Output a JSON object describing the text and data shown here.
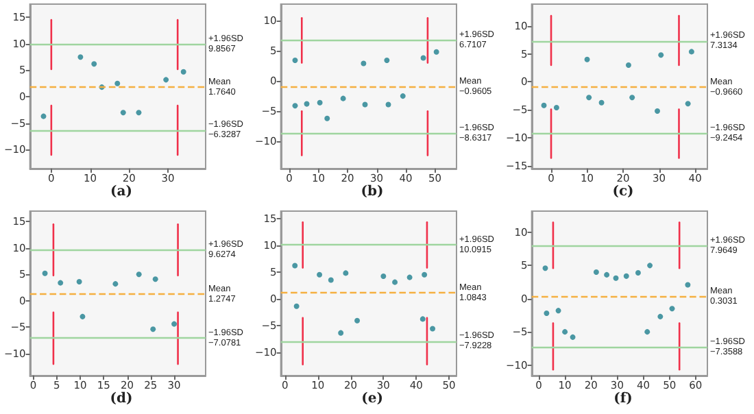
{
  "chart_data": [
    {
      "type": "scatter",
      "title": "(a)",
      "xlim": [
        -5.5,
        39.7
      ],
      "xticks": [
        0,
        10,
        20,
        30
      ],
      "ylim": [
        -13.6,
        17.5
      ],
      "yticks": [
        -10,
        -5,
        0,
        5,
        10,
        15
      ],
      "series": [
        {
          "color": "#1f7f8f",
          "marker": "circle",
          "x": [
            -2,
            7.5,
            11,
            13,
            17,
            18.5,
            22.5,
            29.5,
            34
          ],
          "values": [
            -3.7,
            7.5,
            6.2,
            1.8,
            2.5,
            -3,
            -3,
            3.2,
            4.7
          ]
        },
        {
          "type": "line",
          "color": "#f0304a",
          "x": [
            0,
            0
          ],
          "values": [
            5.2,
            14.5
          ]
        },
        {
          "type": "line",
          "color": "#f0304a",
          "x": [
            32.5,
            32.5
          ],
          "values": [
            5.2,
            14.5
          ]
        },
        {
          "type": "line",
          "color": "#f0304a",
          "x": [
            0,
            0
          ],
          "values": [
            -11,
            -1.7
          ]
        },
        {
          "type": "line",
          "color": "#f0304a",
          "x": [
            32.5,
            32.5
          ],
          "values": [
            -11,
            -1.7
          ]
        }
      ],
      "ref_lines": [
        {
          "axis": "y",
          "value": 9.8567,
          "label": "+1.96SD\n9.8567",
          "color": "#9fd59f",
          "line_style": "solid"
        },
        {
          "axis": "y",
          "value": 1.764,
          "label": "Mean\n1.7640",
          "color": "#f5b041",
          "line_style": "dashed"
        },
        {
          "axis": "y",
          "value": -6.3287,
          "label": "−1.96SD\n−6.3287",
          "color": "#9fd59f",
          "line_style": "solid"
        }
      ]
    },
    {
      "type": "scatter",
      "title": "(b)",
      "xlim": [
        -2.9,
        57.4
      ],
      "xticks": [
        0,
        10,
        20,
        30,
        40,
        50
      ],
      "ylim": [
        -14.5,
        12.7
      ],
      "yticks": [
        -10,
        -5,
        0,
        5,
        10
      ],
      "series": [
        {
          "color": "#1f7f8f",
          "marker": "circle",
          "x": [
            2,
            2,
            6,
            10.5,
            13,
            18.5,
            25.5,
            26,
            33.5,
            34,
            39,
            46,
            50.5
          ],
          "values": [
            3.4,
            -4.1,
            -3.8,
            -3.6,
            -6.2,
            -2.9,
            2.9,
            -3.9,
            3.4,
            -3.9,
            -2.5,
            3.8,
            4.8
          ]
        },
        {
          "type": "line",
          "color": "#f0304a",
          "x": [
            4.3,
            4.3
          ],
          "values": [
            3,
            10.4
          ]
        },
        {
          "type": "line",
          "color": "#f0304a",
          "x": [
            47.5,
            47.5
          ],
          "values": [
            3,
            10.4
          ]
        },
        {
          "type": "line",
          "color": "#f0304a",
          "x": [
            4.3,
            4.3
          ],
          "values": [
            -12.3,
            -5
          ]
        },
        {
          "type": "line",
          "color": "#f0304a",
          "x": [
            47.5,
            47.5
          ],
          "values": [
            -12.3,
            -5
          ]
        }
      ],
      "ref_lines": [
        {
          "axis": "y",
          "value": 6.7107,
          "label": "+1.96SD\n6.7107",
          "color": "#9fd59f",
          "line_style": "solid"
        },
        {
          "axis": "y",
          "value": -0.9605,
          "label": "Mean\n−0.9605",
          "color": "#f5b041",
          "line_style": "dashed"
        },
        {
          "axis": "y",
          "value": -8.6317,
          "label": "−1.96SD\n−8.6317",
          "color": "#9fd59f",
          "line_style": "solid"
        }
      ]
    },
    {
      "type": "scatter",
      "title": "(c)",
      "xlim": [
        -5.4,
        43.4
      ],
      "xticks": [
        0,
        10,
        20,
        30,
        40
      ],
      "ylim": [
        -15.5,
        13.9
      ],
      "yticks": [
        -15,
        -10,
        -5,
        0,
        5,
        10
      ],
      "series": [
        {
          "color": "#1f7f8f",
          "marker": "circle",
          "x": [
            -2,
            1.5,
            10,
            10.5,
            14,
            21.5,
            22.5,
            29.5,
            30.5,
            38,
            39
          ],
          "values": [
            -4.2,
            -4.6,
            4,
            -2.8,
            -3.7,
            3,
            -2.8,
            -5.2,
            4.8,
            -3.9,
            5.4
          ]
        },
        {
          "type": "line",
          "color": "#f0304a",
          "x": [
            0,
            0
          ],
          "values": [
            3,
            11.8
          ]
        },
        {
          "type": "line",
          "color": "#f0304a",
          "x": [
            35.5,
            35.5
          ],
          "values": [
            3,
            11.8
          ]
        },
        {
          "type": "line",
          "color": "#f0304a",
          "x": [
            0,
            0
          ],
          "values": [
            -13.6,
            -4.9
          ]
        },
        {
          "type": "line",
          "color": "#f0304a",
          "x": [
            35.5,
            35.5
          ],
          "values": [
            -13.6,
            -4.9
          ]
        }
      ],
      "ref_lines": [
        {
          "axis": "y",
          "value": 7.3134,
          "label": "+1.96SD\n7.3134",
          "color": "#9fd59f",
          "line_style": "solid"
        },
        {
          "axis": "y",
          "value": -0.966,
          "label": "Mean\n−0.9660",
          "color": "#f5b041",
          "line_style": "dashed"
        },
        {
          "axis": "y",
          "value": -9.2454,
          "label": "−1.96SD\n−9.2454",
          "color": "#9fd59f",
          "line_style": "solid"
        }
      ]
    },
    {
      "type": "scatter",
      "title": "(d)",
      "xlim": [
        -0.7,
        36.7
      ],
      "xticks": [
        0,
        5,
        10,
        15,
        20,
        25,
        30
      ],
      "ylim": [
        -14.2,
        17
      ],
      "yticks": [
        -10,
        -5,
        0,
        5,
        10,
        15
      ],
      "series": [
        {
          "color": "#1f7f8f",
          "marker": "circle",
          "x": [
            2.5,
            5.8,
            9.8,
            10.5,
            17.5,
            22.5,
            26,
            25.5,
            30
          ],
          "values": [
            5.2,
            3.4,
            3.6,
            -3,
            3.2,
            5,
            4.1,
            -5.4,
            -4.4
          ]
        },
        {
          "type": "line",
          "color": "#f0304a",
          "x": [
            4.3,
            4.3
          ],
          "values": [
            4.8,
            14.5
          ]
        },
        {
          "type": "line",
          "color": "#f0304a",
          "x": [
            30.8,
            30.8
          ],
          "values": [
            4.8,
            14.5
          ]
        },
        {
          "type": "line",
          "color": "#f0304a",
          "x": [
            4.3,
            4.3
          ],
          "values": [
            -12,
            -2.2
          ]
        },
        {
          "type": "line",
          "color": "#f0304a",
          "x": [
            30.8,
            30.8
          ],
          "values": [
            -12,
            -2.2
          ]
        }
      ],
      "ref_lines": [
        {
          "axis": "y",
          "value": 9.6274,
          "label": "+1.96SD\n9.6274",
          "color": "#9fd59f",
          "line_style": "solid"
        },
        {
          "axis": "y",
          "value": 1.2747,
          "label": "Mean\n1.2747",
          "color": "#f5b041",
          "line_style": "dashed"
        },
        {
          "axis": "y",
          "value": -7.0781,
          "label": "−1.96SD\n−7.0781",
          "color": "#9fd59f",
          "line_style": "solid"
        }
      ]
    },
    {
      "type": "scatter",
      "title": "(e)",
      "xlim": [
        -1.3,
        52.3
      ],
      "xticks": [
        0,
        10,
        20,
        30,
        40,
        50
      ],
      "ylim": [
        -14.4,
        16.4
      ],
      "yticks": [
        -10,
        -5,
        0,
        5,
        10,
        15
      ],
      "series": [
        {
          "color": "#1f7f8f",
          "marker": "circle",
          "x": [
            3,
            3.5,
            10.5,
            14,
            18.5,
            17,
            22,
            30,
            33.5,
            38,
            42.5,
            42,
            45
          ],
          "values": [
            6.2,
            -1.4,
            4.5,
            3.5,
            4.8,
            -6.4,
            -4.1,
            4.2,
            3.1,
            4,
            4.5,
            -3.8,
            -5.6
          ]
        },
        {
          "type": "line",
          "color": "#f0304a",
          "x": [
            5.4,
            5.4
          ],
          "values": [
            5.8,
            14.3
          ]
        },
        {
          "type": "line",
          "color": "#f0304a",
          "x": [
            43.3,
            43.3
          ],
          "values": [
            5.8,
            14.3
          ]
        },
        {
          "type": "line",
          "color": "#f0304a",
          "x": [
            5.4,
            5.4
          ],
          "values": [
            -12.3,
            -3.6
          ]
        },
        {
          "type": "line",
          "color": "#f0304a",
          "x": [
            43.3,
            43.3
          ],
          "values": [
            -12.3,
            -3.6
          ]
        }
      ],
      "ref_lines": [
        {
          "axis": "y",
          "value": 10.0915,
          "label": "+1.96SD\n10.0915",
          "color": "#9fd59f",
          "line_style": "solid"
        },
        {
          "axis": "y",
          "value": 1.0843,
          "label": "Mean\n1.0843",
          "color": "#f5b041",
          "line_style": "dashed"
        },
        {
          "axis": "y",
          "value": -7.9228,
          "label": "−1.96SD\n−7.9228",
          "color": "#9fd59f",
          "line_style": "solid"
        }
      ]
    },
    {
      "type": "scatter",
      "title": "(f)",
      "xlim": [
        -2.7,
        64.5
      ],
      "xticks": [
        0,
        10,
        20,
        30,
        40,
        50,
        60
      ],
      "ylim": [
        -11.6,
        13.2
      ],
      "yticks": [
        -10,
        -5,
        0,
        5,
        10
      ],
      "series": [
        {
          "color": "#1f7f8f",
          "marker": "circle",
          "x": [
            2.5,
            3,
            7.5,
            10,
            13,
            22,
            26,
            29.5,
            33.5,
            38,
            41.5,
            42.5,
            46.5,
            51,
            57
          ],
          "values": [
            4.6,
            -2.2,
            -1.8,
            -5,
            -5.8,
            4,
            3.6,
            3.1,
            3.4,
            3.9,
            -5,
            5,
            -2.7,
            -1.5,
            2.1
          ]
        },
        {
          "type": "line",
          "color": "#f0304a",
          "x": [
            5.5,
            5.5
          ],
          "values": [
            4.6,
            11.5
          ]
        },
        {
          "type": "line",
          "color": "#f0304a",
          "x": [
            53.8,
            53.8
          ],
          "values": [
            4.6,
            11.5
          ]
        },
        {
          "type": "line",
          "color": "#f0304a",
          "x": [
            5.5,
            5.5
          ],
          "values": [
            -10.7,
            -3.7
          ]
        },
        {
          "type": "line",
          "color": "#f0304a",
          "x": [
            53.8,
            53.8
          ],
          "values": [
            -10.7,
            -3.7
          ]
        }
      ],
      "ref_lines": [
        {
          "axis": "y",
          "value": 7.9649,
          "label": "+1.96SD\n7.9649",
          "color": "#9fd59f",
          "line_style": "solid"
        },
        {
          "axis": "y",
          "value": 0.3031,
          "label": "Mean\n0.3031",
          "color": "#f5b041",
          "line_style": "dashed"
        },
        {
          "axis": "y",
          "value": -7.3588,
          "label": "−1.96SD\n−7.3588",
          "color": "#9fd59f",
          "line_style": "solid"
        }
      ]
    }
  ]
}
